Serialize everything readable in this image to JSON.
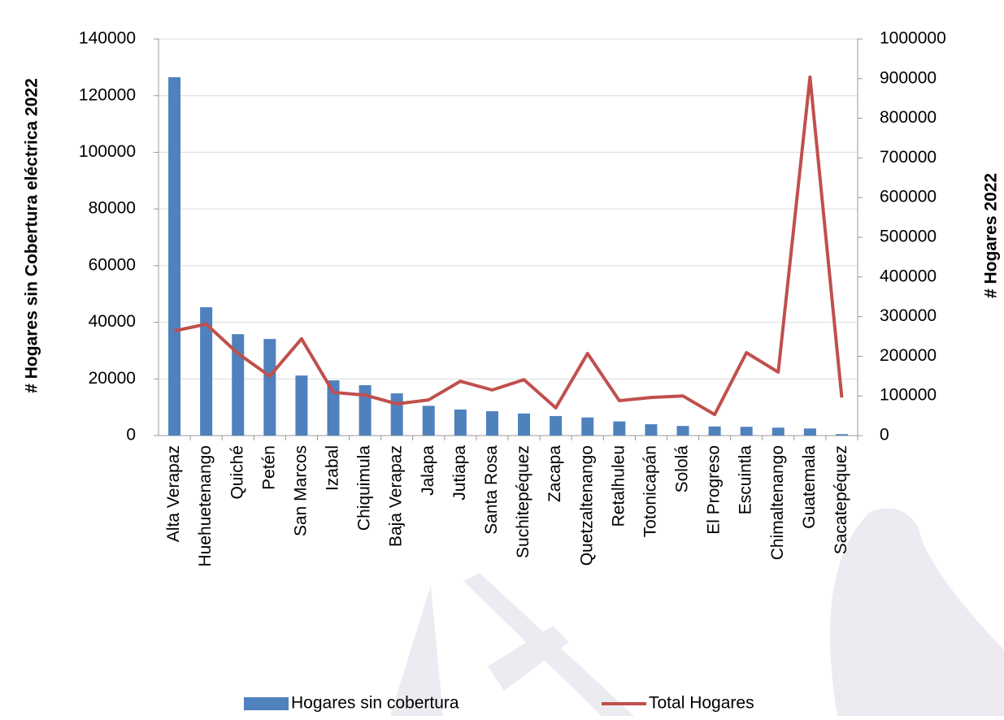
{
  "chart_data": {
    "type": "bar_line",
    "y_label": "# Hogares sin Cobertura eléctrica 2022",
    "y2_label": "# Hogares 2022",
    "categories": [
      "Alta Verapaz",
      "Huehuetenango",
      "Quiché",
      "Petén",
      "San Marcos",
      "Izabal",
      "Chiquimula",
      "Baja Verapaz",
      "Jalapa",
      "Jutiapa",
      "Santa Rosa",
      "Suchitepéquez",
      "Zacapa",
      "Quetzaltenango",
      "Retalhuleu",
      "Totonicapán",
      "Sololá",
      "El Progreso",
      "Escuintla",
      "Chimaltenango",
      "Guatemala",
      "Sacatepéquez"
    ],
    "series": [
      {
        "name": "Hogares sin cobertura",
        "color": "#4f81bd",
        "type": "bar",
        "values": [
          126500,
          45300,
          35800,
          34100,
          21200,
          19500,
          17800,
          14900,
          10500,
          9200,
          8600,
          7800,
          6900,
          6400,
          5000,
          4000,
          3400,
          3200,
          3100,
          2800,
          2500,
          500
        ]
      },
      {
        "name": "Total Hogares",
        "color": "#c0504d",
        "type": "line",
        "axis": "y2",
        "values": [
          264000,
          281000,
          207000,
          150000,
          244000,
          109000,
          102000,
          80000,
          90000,
          137000,
          115000,
          141000,
          70000,
          207000,
          88000,
          96000,
          100000,
          53000,
          209000,
          160000,
          904000,
          96000
        ]
      }
    ],
    "ylim": [
      0,
      140000
    ],
    "yticks": [
      0,
      20000,
      40000,
      60000,
      80000,
      100000,
      120000,
      140000
    ],
    "y2lim": [
      0,
      1000000
    ],
    "y2ticks": [
      0,
      100000,
      200000,
      300000,
      400000,
      500000,
      600000,
      700000,
      800000,
      900000,
      1000000
    ],
    "grid": true,
    "legend": "bottom"
  }
}
